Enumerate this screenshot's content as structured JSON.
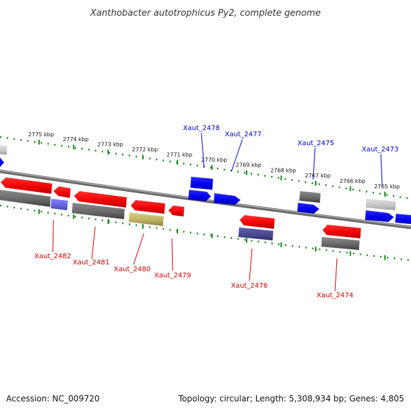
{
  "title": "Xanthobacter autotrophicus Py2, complete genome",
  "footer": {
    "accession": "Accession: NC_009720",
    "topology": "Topology: circular; Length: 5,308,934 bp; Genes: 4,805"
  },
  "colors": {
    "backbone": "#888888",
    "tick": "#1a8a1a",
    "forward_label": "#0000cc",
    "reverse_label": "#cc0000"
  },
  "ticks": [
    {
      "label": "2775 kbp"
    },
    {
      "label": "2774 kbp"
    },
    {
      "label": "2773 kbp"
    },
    {
      "label": "2772 kbp"
    },
    {
      "label": "2771 kbp"
    },
    {
      "label": "2770 kbp"
    },
    {
      "label": "2769 kbp"
    },
    {
      "label": "2768 kbp"
    },
    {
      "label": "2767 kbp"
    },
    {
      "label": "2766 kbp"
    },
    {
      "label": "2765 kbp"
    }
  ],
  "gene_labels": {
    "forward": [
      "Xaut_2478",
      "Xaut_2477",
      "Xaut_2475",
      "Xaut_2473"
    ],
    "reverse": [
      "Xaut_2482",
      "Xaut_2481",
      "Xaut_2480",
      "Xaut_2479",
      "Xaut_2476",
      "Xaut_2474"
    ]
  }
}
